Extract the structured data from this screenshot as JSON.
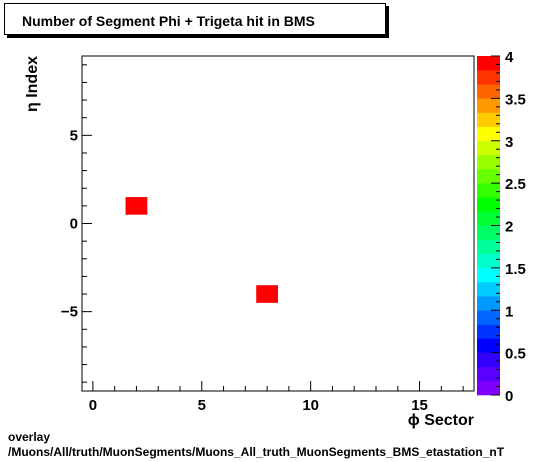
{
  "chart_data": {
    "type": "heatmap",
    "title": "Number of Segment Phi + Trigeta hit in BMS",
    "xlabel": "ϕ Sector",
    "ylabel": "η Index",
    "xlim": [
      -0.5,
      17.5
    ],
    "ylim": [
      -9.5,
      9.5
    ],
    "x_ticks": [
      "0",
      "5",
      "10",
      "15"
    ],
    "y_ticks": [
      "−5",
      "0",
      "5"
    ],
    "cells": [
      {
        "x": 2,
        "y": 1,
        "value": 4
      },
      {
        "x": 8,
        "y": -4,
        "value": 4
      }
    ],
    "colorbar": {
      "min": 0,
      "max": 4,
      "ticks": [
        "0",
        "0.5",
        "1",
        "1.5",
        "2",
        "2.5",
        "3",
        "3.5",
        "4"
      ]
    },
    "grid": false,
    "legend": "none"
  },
  "footer": {
    "line1": "overlay",
    "line2": "/Muons/All/truth/MuonSegments/Muons_All_truth_MuonSegments_BMS_etastation_nT"
  }
}
